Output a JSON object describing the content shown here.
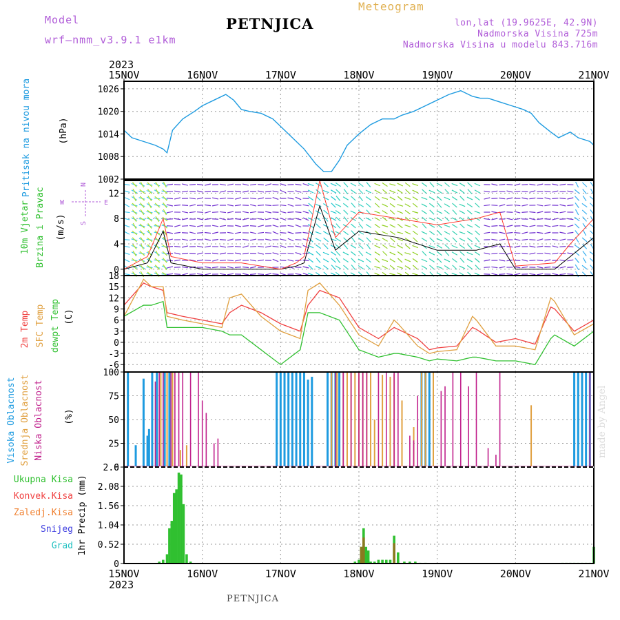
{
  "header": {
    "model_label": "Model",
    "model_name": "wrf—nmm_v3.9.1  e1km",
    "title": "PETNJICA",
    "kind": "Meteogram",
    "lonlat": "lon,lat (19.9625E, 42.9N)",
    "elevation": "Nadmorska Visina 725m",
    "model_elevation": "Nadmorska Visina u modelu 843.716m"
  },
  "footer": {
    "title": "PETNJICA",
    "watermark": "made by Angel"
  },
  "time_axis": {
    "year": "2023",
    "labels": [
      "15NOV",
      "16NOV",
      "17NOV",
      "18NOV",
      "19NOV",
      "20NOV",
      "21NOV"
    ]
  },
  "colors": {
    "pressure": "#1e9be0",
    "wind_speed": "#000000",
    "wind_gust": "#ff3b30",
    "temp2m": "#f04040",
    "sfc_temp": "#e0a040",
    "dewpt": "#30c030",
    "high_cloud": "#1e9be0",
    "mid_cloud": "#e0a040",
    "low_cloud": "#c0208c",
    "precip_total": "#30c030",
    "precip_conv": "#f04040",
    "precip_frz": "#f08030",
    "precip_snow": "#4040e0",
    "precip_hail": "#20c0c0"
  },
  "chart_data": [
    {
      "type": "line",
      "panel": "pressure",
      "ylabel": "Pritisak na nivou mora",
      "unit": "(hPa)",
      "ylim": [
        1002,
        1028
      ],
      "yticks": [
        "1026",
        "1020",
        "1014",
        "1008",
        "1002"
      ],
      "grid": true,
      "x_days": [
        0,
        0.1,
        0.25,
        0.4,
        0.5,
        0.55,
        0.62,
        0.75,
        0.9,
        1.0,
        1.15,
        1.3,
        1.4,
        1.5,
        1.6,
        1.75,
        1.9,
        2.0,
        2.15,
        2.3,
        2.45,
        2.55,
        2.65,
        2.75,
        2.85,
        3.0,
        3.15,
        3.3,
        3.45,
        3.55,
        3.7,
        3.85,
        4.0,
        4.15,
        4.3,
        4.45,
        4.55,
        4.65,
        4.8,
        4.95,
        5.1,
        5.2,
        5.3,
        5.45,
        5.55,
        5.7,
        5.8,
        5.95,
        6.0
      ],
      "values": [
        1015,
        1013,
        1012,
        1011,
        1010,
        1009,
        1015,
        1018,
        1020,
        1021.5,
        1023,
        1024.5,
        1023,
        1020.5,
        1020,
        1019.5,
        1018,
        1016,
        1013,
        1010,
        1006,
        1004,
        1004,
        1007,
        1011,
        1014,
        1016.5,
        1018,
        1018,
        1019,
        1020,
        1021.5,
        1023,
        1024.5,
        1025.5,
        1024,
        1023.5,
        1023.5,
        1022.5,
        1021.5,
        1020.5,
        1019.5,
        1017,
        1014.5,
        1013,
        1014.5,
        1013,
        1012,
        1011
      ]
    },
    {
      "type": "line",
      "panel": "wind",
      "ylabel": "10m Vjetar Brzina i Pravac",
      "unit": "(m/s)",
      "direction_legend": [
        "N",
        "E",
        "S",
        "W"
      ],
      "ylim": [
        -1,
        14
      ],
      "yticks": [
        "12",
        "8",
        "4",
        "0"
      ],
      "grid": true,
      "x_days": [
        0,
        0.3,
        0.5,
        0.6,
        1.0,
        1.5,
        2.0,
        2.2,
        2.3,
        2.5,
        2.7,
        3.0,
        3.5,
        4.0,
        4.5,
        4.8,
        5.0,
        5.5,
        5.7,
        6.0
      ],
      "series": [
        {
          "name": "speed",
          "values": [
            0,
            1,
            6,
            1,
            0,
            0,
            0,
            0.5,
            1,
            10,
            3,
            6,
            5,
            3,
            3,
            4,
            0,
            0,
            2,
            5
          ]
        },
        {
          "name": "gust",
          "values": [
            0,
            2,
            8,
            2,
            1,
            1,
            0,
            1,
            2,
            14,
            5,
            9,
            8,
            7,
            8,
            9,
            0.5,
            1,
            4,
            8
          ]
        }
      ]
    },
    {
      "type": "line",
      "panel": "temperature",
      "ylabels": [
        "2m Temp",
        "SFC Temp",
        "dewpt Temp"
      ],
      "unit": "(C)",
      "ylim": [
        -8,
        18
      ],
      "yticks": [
        "18",
        "15",
        "12",
        "9",
        "6",
        "3",
        "0",
        "-3",
        "-6"
      ],
      "grid": true,
      "x_days": [
        0,
        0.25,
        0.35,
        0.5,
        0.55,
        0.75,
        1.0,
        1.25,
        1.35,
        1.5,
        1.75,
        2.0,
        2.25,
        2.35,
        2.5,
        2.75,
        3.0,
        3.25,
        3.45,
        3.5,
        3.75,
        3.9,
        4.0,
        4.25,
        4.45,
        4.5,
        4.75,
        5.0,
        5.25,
        5.45,
        5.5,
        5.75,
        6.0
      ],
      "series": [
        {
          "name": "2m Temp",
          "values": [
            10,
            16,
            15,
            14,
            8,
            7,
            6,
            5,
            8,
            10,
            8,
            5,
            3,
            10,
            14,
            12,
            4,
            1,
            4,
            3.5,
            1,
            -2,
            -1.5,
            -1,
            4,
            3.5,
            0,
            1,
            -0.5,
            9.5,
            9,
            3,
            6
          ]
        },
        {
          "name": "SFC Temp",
          "values": [
            7,
            17,
            15,
            15,
            7,
            6,
            5,
            4,
            12,
            13,
            7,
            3,
            1,
            14,
            16,
            10,
            2,
            -1,
            6,
            5,
            -1,
            -3,
            -2.5,
            -2,
            7,
            6,
            -1,
            -1,
            -2,
            12,
            11,
            2,
            5
          ]
        },
        {
          "name": "dewpt Temp",
          "values": [
            7,
            10,
            10,
            11,
            4,
            4,
            4,
            3,
            2,
            2,
            -2,
            -6,
            -2,
            8,
            8,
            6,
            -2,
            -4,
            -3,
            -3,
            -4,
            -5,
            -4.5,
            -5,
            -4,
            -4,
            -5,
            -5,
            -6,
            1,
            2,
            -1,
            3
          ]
        }
      ]
    },
    {
      "type": "bar",
      "panel": "cloud",
      "ylabels": [
        "Visoka Oblacnost",
        "Srednja Oblacnost",
        "Niska Oblacnost"
      ],
      "unit": "(%)",
      "ylim": [
        0,
        100
      ],
      "yticks": [
        "100",
        "75",
        "50",
        "25",
        "0"
      ],
      "grid": true,
      "series": [
        {
          "name": "Visoka Oblacnost",
          "x_days": [
            0.05,
            0.15,
            0.25,
            0.3,
            0.32,
            0.36,
            0.42,
            0.52,
            0.58,
            1.95,
            2.0,
            2.05,
            2.1,
            2.15,
            2.2,
            2.25,
            2.3,
            2.35,
            2.4,
            2.6,
            2.65,
            2.7,
            2.75,
            3.8,
            3.85,
            3.9,
            5.75,
            5.8,
            5.85,
            5.9,
            5.95
          ],
          "values": [
            100,
            23,
            93,
            33,
            40,
            100,
            100,
            100,
            100,
            100,
            100,
            100,
            100,
            100,
            100,
            100,
            100,
            92,
            95,
            100,
            100,
            100,
            100,
            100,
            100,
            100,
            100,
            100,
            100,
            100,
            100
          ]
        },
        {
          "name": "Srednja Oblacnost",
          "x_days": [
            0.47,
            0.55,
            0.62,
            0.72,
            0.8,
            2.65,
            2.72,
            2.8,
            2.85,
            2.9,
            2.95,
            3.0,
            3.05,
            3.1,
            3.15,
            3.2,
            3.3,
            3.4,
            3.45,
            3.55,
            3.7,
            3.8,
            3.85,
            3.95,
            5.2,
            6.0
          ],
          "values": [
            100,
            100,
            100,
            18,
            23,
            100,
            100,
            100,
            100,
            100,
            100,
            100,
            100,
            100,
            100,
            50,
            97,
            95,
            98,
            70,
            42,
            100,
            100,
            100,
            65,
            100
          ]
        },
        {
          "name": "Niska Oblacnost",
          "x_days": [
            0.4,
            0.45,
            0.5,
            0.6,
            0.65,
            0.7,
            0.75,
            0.85,
            0.95,
            1.0,
            1.05,
            1.15,
            1.2,
            2.7,
            2.8,
            2.9,
            3.0,
            3.05,
            3.1,
            3.25,
            3.35,
            3.45,
            3.5,
            3.65,
            3.7,
            3.75,
            4.05,
            4.1,
            4.2,
            4.3,
            4.4,
            4.5,
            4.65,
            4.75,
            4.8,
            5.95
          ],
          "values": [
            90,
            100,
            100,
            100,
            100,
            100,
            100,
            100,
            100,
            70,
            57,
            25,
            30,
            100,
            100,
            100,
            100,
            100,
            100,
            100,
            100,
            100,
            100,
            33,
            28,
            75,
            80,
            85,
            100,
            100,
            85,
            100,
            20,
            13,
            100,
            100
          ]
        }
      ]
    },
    {
      "type": "bar",
      "panel": "precipitation",
      "ylabels": [
        "Ukupna Kisa",
        "Konvek.Kisa",
        "Zaledj.Kisa",
        "Snijeg",
        "Grad"
      ],
      "unit": "1hr Precip (mm)",
      "ylim": [
        0,
        2.6
      ],
      "yticks": [
        "2.6",
        "2.08",
        "1.56",
        "1.04",
        "0.52",
        "0"
      ],
      "grid": true,
      "series": [
        {
          "name": "Ukupna Kisa",
          "x_days": [
            0.45,
            0.5,
            0.55,
            0.58,
            0.61,
            0.64,
            0.67,
            0.7,
            0.73,
            0.76,
            0.8,
            0.85,
            2.95,
            3.0,
            3.03,
            3.06,
            3.09,
            3.12,
            3.15,
            3.2,
            3.25,
            3.3,
            3.35,
            3.4,
            3.45,
            3.5,
            3.58,
            3.65,
            3.72,
            3.78,
            3.85,
            5.6,
            5.65,
            5.7,
            5.75,
            5.8,
            5.85,
            5.9,
            5.95,
            6.0
          ],
          "values": [
            0.05,
            0.1,
            0.25,
            0.95,
            1.15,
            1.9,
            2.0,
            2.45,
            2.4,
            1.6,
            0.25,
            0.05,
            0.05,
            0.1,
            0.45,
            0.95,
            0.45,
            0.35,
            0.05,
            0.05,
            0.1,
            0.1,
            0.1,
            0.1,
            0.75,
            0.3,
            0.05,
            0.05,
            0.05,
            0.02,
            0.02,
            0.02,
            0.02,
            0.02,
            0.02,
            0.02,
            0.02,
            0.02,
            0.02,
            0.45
          ]
        },
        {
          "name": "Zaledj.Kisa",
          "x_days": [
            3.03,
            3.06,
            3.45
          ],
          "values": [
            0.45,
            0.7,
            0.55
          ]
        }
      ]
    }
  ]
}
